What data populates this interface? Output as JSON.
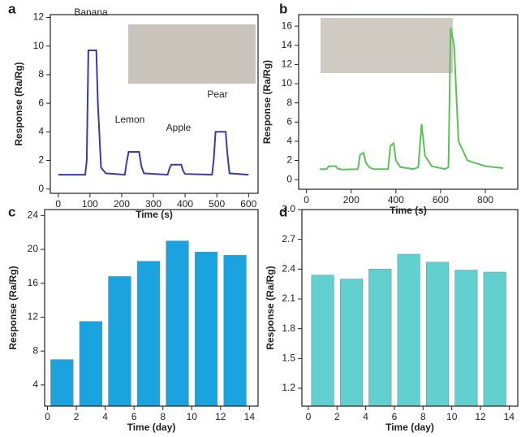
{
  "chart_data": [
    {
      "type": "line",
      "panel_label": "a",
      "xlabel": "Time (s)",
      "ylabel": "Response (Ra/Rg)",
      "annotations": [
        "Banana",
        "Lemon",
        "Apple",
        "Pear"
      ],
      "series": [
        {
          "color": "#3b3ba6",
          "x": [
            0,
            85,
            90,
            95,
            120,
            125,
            135,
            150,
            210,
            215,
            222,
            255,
            262,
            270,
            345,
            350,
            356,
            388,
            393,
            400,
            485,
            490,
            496,
            528,
            533,
            540,
            600
          ],
          "values": [
            1,
            1,
            2,
            9.7,
            9.7,
            6,
            1.5,
            1.1,
            1,
            1.8,
            2.6,
            2.6,
            1.6,
            1.1,
            1,
            1.4,
            1.7,
            1.7,
            1.3,
            1.05,
            1,
            2,
            4,
            4,
            2.5,
            1.1,
            1
          ]
        }
      ],
      "xlim": [
        -25,
        630
      ],
      "ylim": [
        -0.3,
        12.2
      ],
      "xticks": [
        0,
        100,
        200,
        300,
        400,
        500,
        600
      ],
      "yticks": [
        0,
        2,
        4,
        6,
        8,
        10,
        12
      ]
    },
    {
      "type": "line",
      "panel_label": "b",
      "xlabel": "Time (s)",
      "ylabel": "Response (Ra/Rg)",
      "series": [
        {
          "color": "#5cbf5c",
          "x": [
            60,
            90,
            100,
            130,
            140,
            160,
            230,
            240,
            255,
            265,
            280,
            300,
            365,
            375,
            390,
            400,
            420,
            480,
            500,
            515,
            530,
            560,
            620,
            635,
            645,
            660,
            680,
            720,
            800,
            880
          ],
          "values": [
            1.1,
            1.1,
            1.4,
            1.4,
            1.15,
            1.05,
            1.1,
            2.6,
            2.8,
            1.8,
            1.3,
            1.1,
            1.1,
            3.5,
            3.8,
            2,
            1.3,
            1.1,
            1.3,
            5.8,
            2.5,
            1.4,
            1.1,
            1.3,
            15.8,
            14,
            4,
            2,
            1.4,
            1.2
          ]
        }
      ],
      "xlim": [
        -35,
        945
      ],
      "ylim": [
        -1,
        17.2
      ],
      "xticks": [
        0,
        200,
        400,
        600,
        800
      ],
      "yticks": [
        0,
        2,
        4,
        6,
        8,
        10,
        12,
        14,
        16
      ]
    },
    {
      "type": "bar",
      "panel_label": "c",
      "xlabel": "Time (day)",
      "ylabel": "Response (Ra/Rg)",
      "x": [
        1,
        3,
        5,
        7,
        9,
        11,
        13
      ],
      "values": [
        7,
        11.5,
        16.8,
        18.6,
        21,
        19.7,
        19.3
      ],
      "color": "#1ba3e0",
      "xlim": [
        -0.2,
        14.6
      ],
      "ylim": [
        1.5,
        24.7
      ],
      "xticks": [
        0,
        2,
        4,
        6,
        8,
        10,
        12,
        14
      ],
      "yticks": [
        4,
        8,
        12,
        16,
        20,
        24
      ]
    },
    {
      "type": "bar",
      "panel_label": "d",
      "xlabel": "Time (day)",
      "ylabel": "Response (Ra/Rg)",
      "x": [
        1,
        3,
        5,
        7,
        9,
        11,
        13
      ],
      "values": [
        2.34,
        2.3,
        2.4,
        2.55,
        2.47,
        2.39,
        2.37
      ],
      "color": "#62d0cf",
      "xlim": [
        -0.45,
        14.6
      ],
      "ylim": [
        1.02,
        3.0
      ],
      "xticks": [
        0,
        2,
        4,
        6,
        8,
        10,
        12,
        14
      ],
      "yticks": [
        1.2,
        1.5,
        1.8,
        2.1,
        2.4,
        2.7,
        {
          "value": 3,
          "label": "3.0"
        }
      ]
    }
  ]
}
